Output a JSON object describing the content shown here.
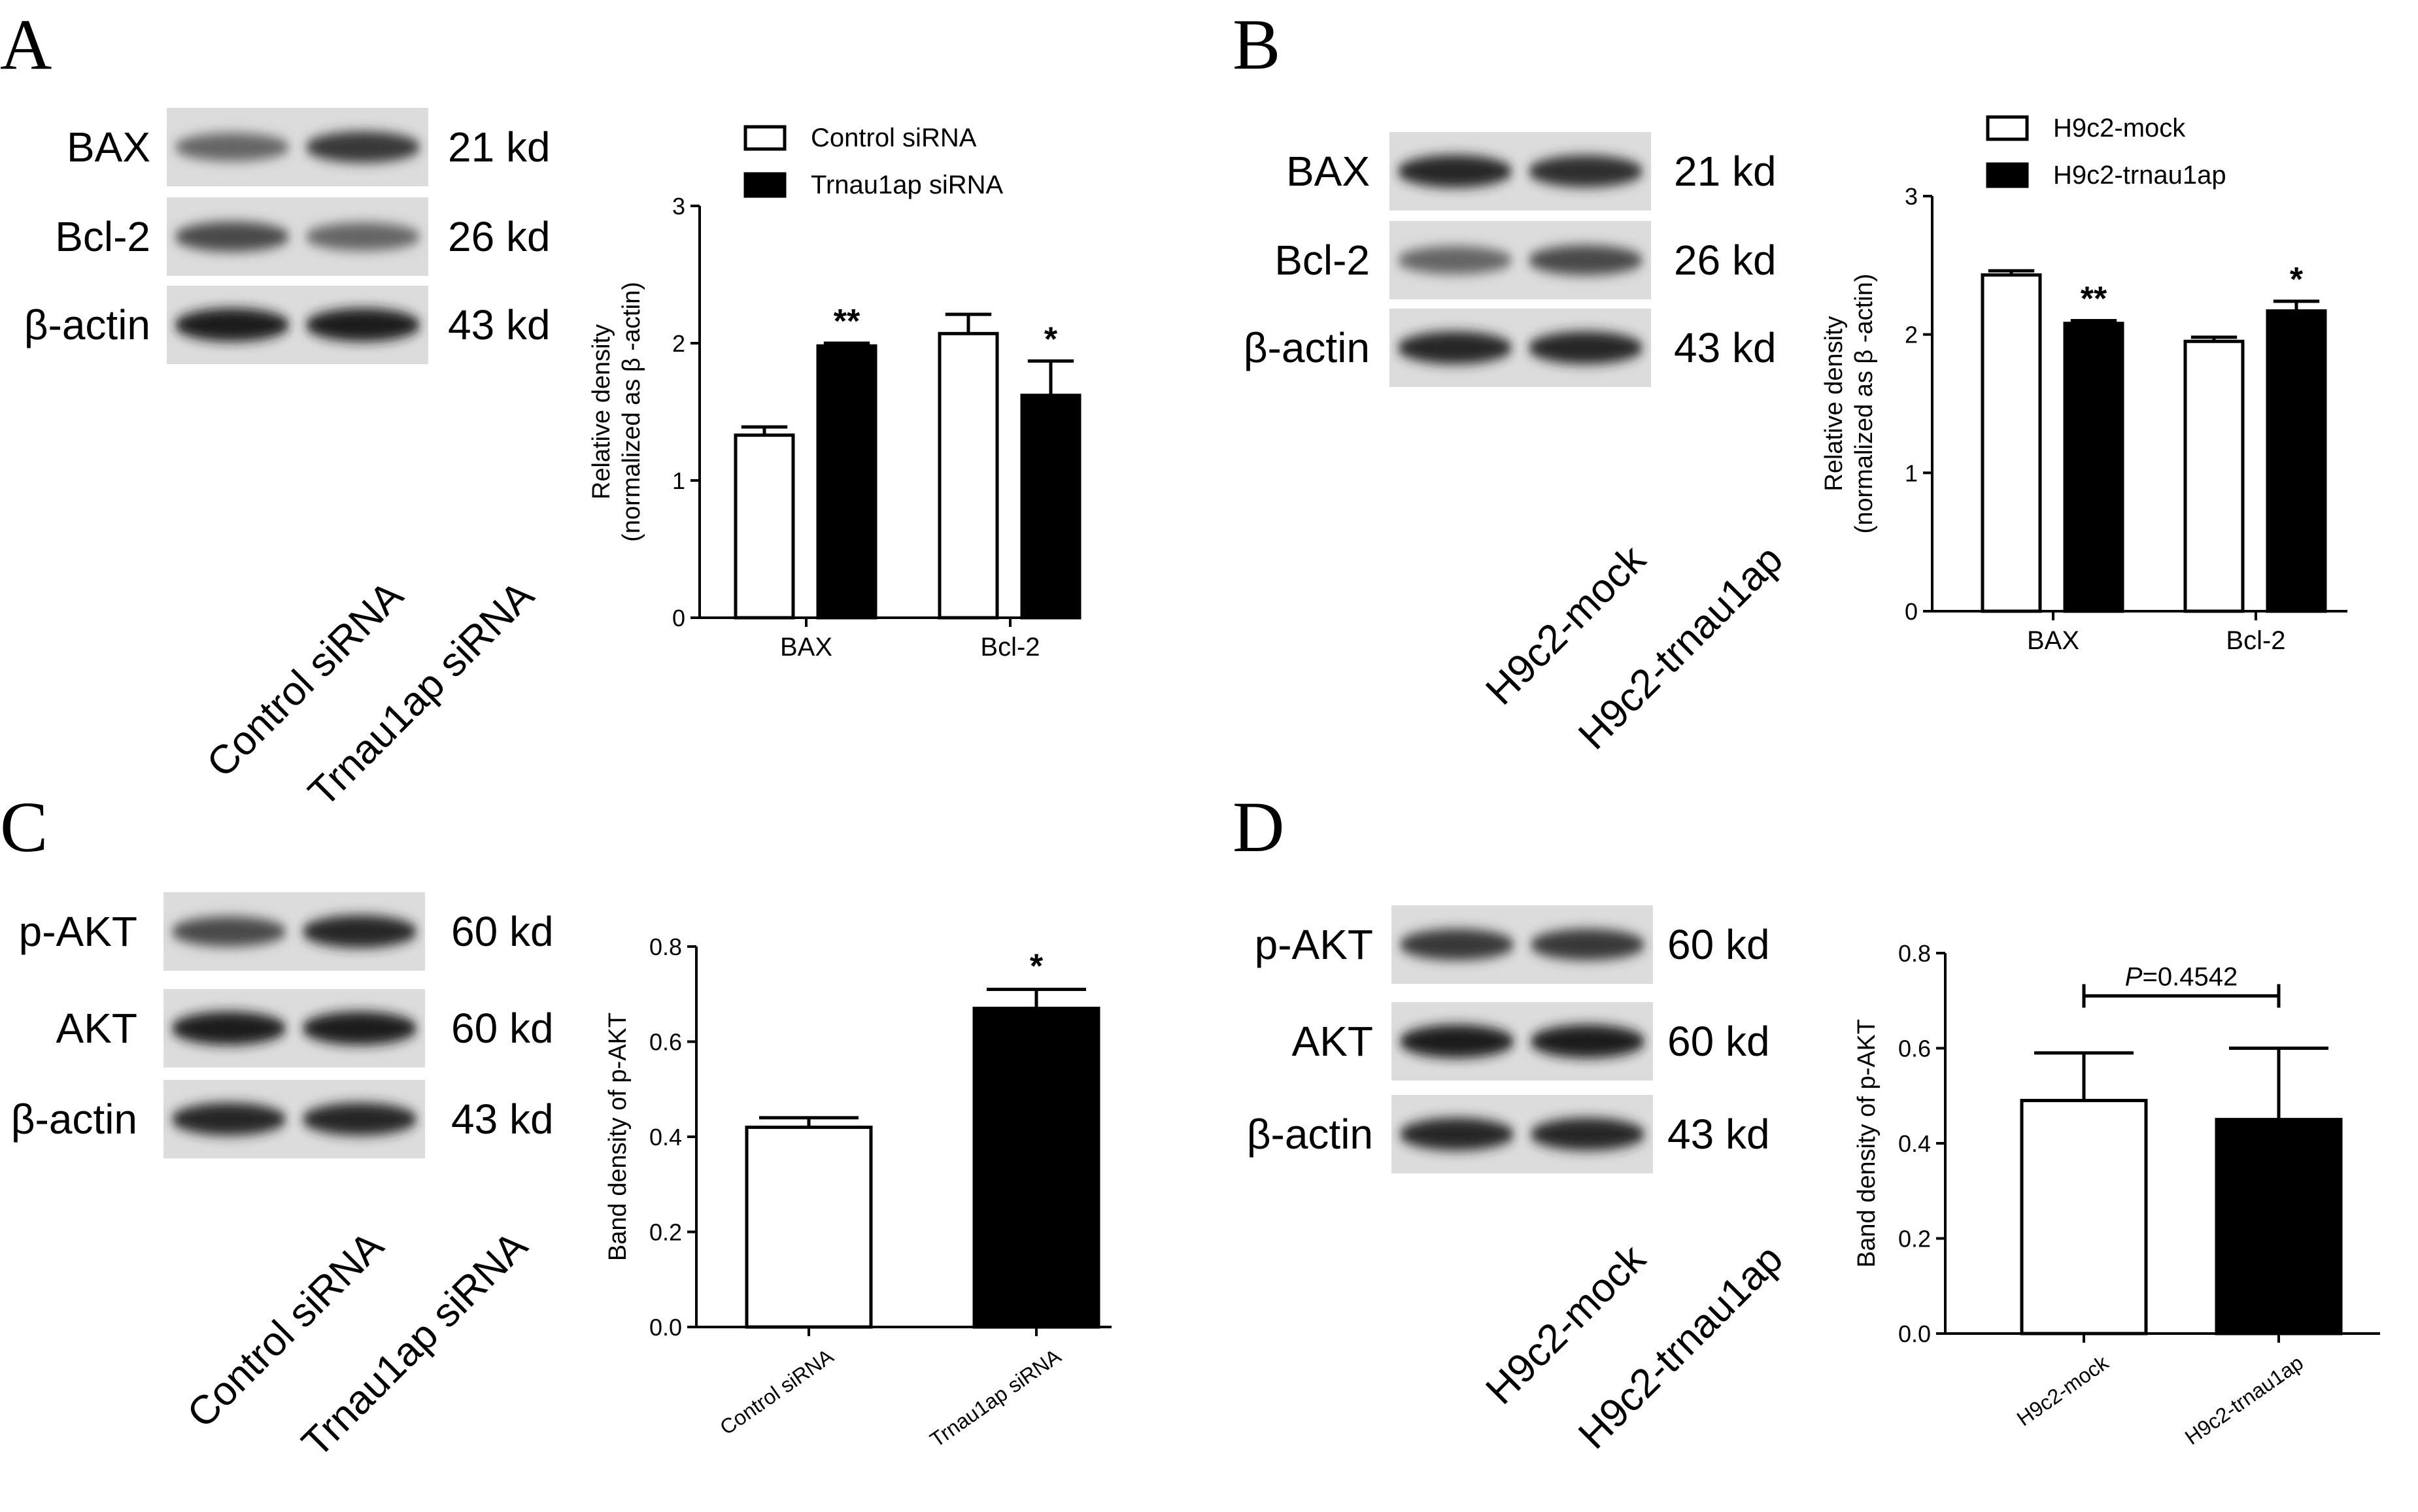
{
  "panels": [
    {
      "letter": "A",
      "blot": {
        "rows": [
          {
            "protein": "BAX",
            "size": "21 kd",
            "intensity": [
              0.55,
              0.8
            ]
          },
          {
            "protein": "Bcl-2",
            "size": "26 kd",
            "intensity": [
              0.7,
              0.55
            ]
          },
          {
            "protein": "β-actin",
            "size": "43 kd",
            "intensity": [
              0.95,
              0.95
            ]
          }
        ],
        "lanes": [
          "Control siRNA",
          "Trnau1ap siRNA"
        ]
      }
    },
    {
      "letter": "B",
      "blot": {
        "rows": [
          {
            "protein": "BAX",
            "size": "21 kd",
            "intensity": [
              0.9,
              0.85
            ]
          },
          {
            "protein": "Bcl-2",
            "size": "26 kd",
            "intensity": [
              0.55,
              0.7
            ]
          },
          {
            "protein": "β-actin",
            "size": "43 kd",
            "intensity": [
              0.9,
              0.9
            ]
          }
        ],
        "lanes": [
          "H9c2-mock",
          "H9c2-trnau1ap"
        ]
      }
    },
    {
      "letter": "C",
      "blot": {
        "rows": [
          {
            "protein": "p-AKT",
            "size": "60 kd",
            "intensity": [
              0.7,
              0.9
            ]
          },
          {
            "protein": "AKT",
            "size": "60 kd",
            "intensity": [
              0.95,
              0.95
            ]
          },
          {
            "protein": "β-actin",
            "size": "43 kd",
            "intensity": [
              0.9,
              0.9
            ]
          }
        ],
        "lanes": [
          "Control siRNA",
          "Trnau1ap siRNA"
        ]
      }
    },
    {
      "letter": "D",
      "blot": {
        "rows": [
          {
            "protein": "p-AKT",
            "size": "60 kd",
            "intensity": [
              0.8,
              0.8
            ]
          },
          {
            "protein": "AKT",
            "size": "60 kd",
            "intensity": [
              0.95,
              0.95
            ]
          },
          {
            "protein": "β-actin",
            "size": "43 kd",
            "intensity": [
              0.9,
              0.9
            ]
          }
        ],
        "lanes": [
          "H9c2-mock",
          "H9c2-trnau1ap"
        ]
      }
    }
  ],
  "chart_data": [
    {
      "panel": "A",
      "type": "bar",
      "categories": [
        "BAX",
        "Bcl-2"
      ],
      "series": [
        {
          "name": "Control siRNA",
          "values": [
            1.33,
            2.07
          ],
          "errors": [
            0.06,
            0.14
          ],
          "fill": "#ffffff",
          "sig": [
            "",
            ""
          ]
        },
        {
          "name": "Trnau1ap siRNA",
          "values": [
            1.98,
            1.62
          ],
          "errors": [
            0.02,
            0.25
          ],
          "fill": "#000000",
          "sig": [
            "**",
            "*"
          ]
        }
      ],
      "ylabel": [
        "Relative density",
        "(normalized as β -actin)"
      ],
      "ylim": [
        0,
        3
      ],
      "yticks": [
        "0",
        "1",
        "2",
        "3"
      ],
      "legend": "top"
    },
    {
      "panel": "B",
      "type": "bar",
      "categories": [
        "BAX",
        "Bcl-2"
      ],
      "series": [
        {
          "name": "H9c2-mock",
          "values": [
            2.43,
            1.95
          ],
          "errors": [
            0.03,
            0.03
          ],
          "fill": "#ffffff",
          "sig": [
            "",
            ""
          ]
        },
        {
          "name": "H9c2-trnau1ap",
          "values": [
            2.08,
            2.17
          ],
          "errors": [
            0.02,
            0.07
          ],
          "fill": "#000000",
          "sig": [
            "**",
            "*"
          ]
        }
      ],
      "ylabel": [
        "Relative density",
        "(normalized as β -actin)"
      ],
      "ylim": [
        0,
        3
      ],
      "yticks": [
        "0",
        "1",
        "2",
        "3"
      ],
      "legend": "top"
    },
    {
      "panel": "C",
      "type": "bar",
      "categories": [
        "Control siRNA",
        "Trnau1ap siRNA"
      ],
      "values": [
        0.42,
        0.67
      ],
      "errors": [
        0.02,
        0.04
      ],
      "fills": [
        "#ffffff",
        "#000000"
      ],
      "sig": [
        "",
        "*"
      ],
      "ylabel": "Band density of p-AKT",
      "ylim": [
        0,
        0.8
      ],
      "yticks": [
        "0.0",
        "0.2",
        "0.4",
        "0.6",
        "0.8"
      ]
    },
    {
      "panel": "D",
      "type": "bar",
      "categories": [
        "H9c2-mock",
        "H9c2-trnau1ap"
      ],
      "values": [
        0.49,
        0.45
      ],
      "errors": [
        0.1,
        0.15
      ],
      "fills": [
        "#ffffff",
        "#000000"
      ],
      "ylabel": "Band density of p-AKT",
      "ylim": [
        0,
        0.8
      ],
      "yticks": [
        "0.0",
        "0.2",
        "0.4",
        "0.6",
        "0.8"
      ],
      "comparison": {
        "italic": "P",
        "rest": "=0.4542"
      }
    }
  ]
}
